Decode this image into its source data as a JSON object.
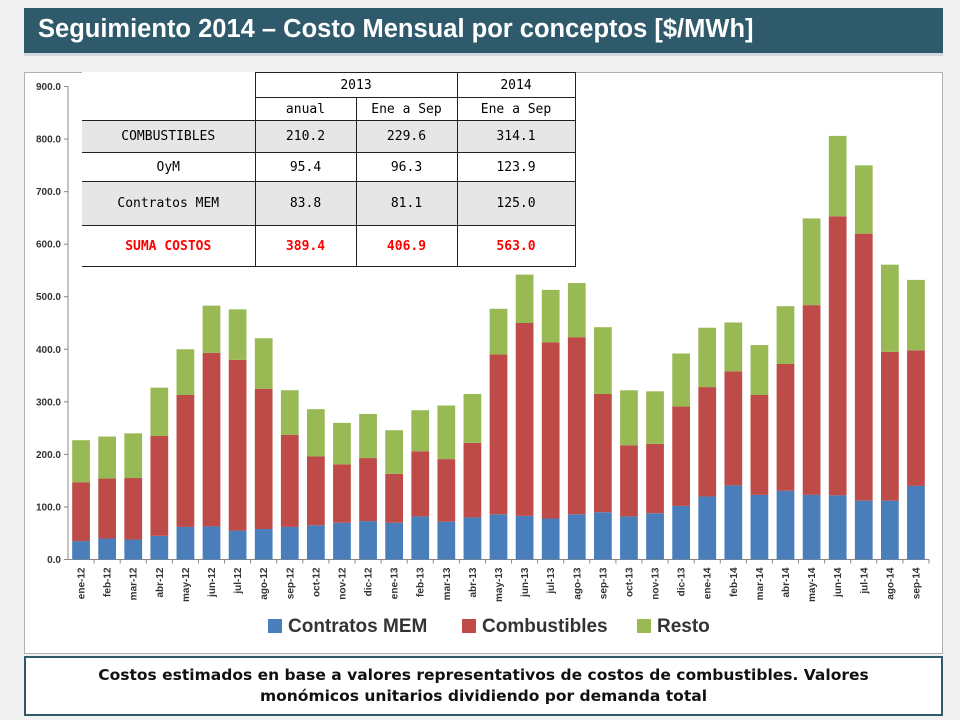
{
  "header": {
    "title": "Seguimiento 2014 – Costo Mensual por conceptos [$/MWh]"
  },
  "table": {
    "year_headers": [
      "2013",
      "2014"
    ],
    "sub_headers": [
      "anual",
      "Ene a Sep",
      "Ene a Sep"
    ],
    "rows": [
      {
        "label": "COMBUSTIBLES",
        "values": [
          "210.2",
          "229.6",
          "314.1"
        ]
      },
      {
        "label": "OyM",
        "values": [
          "95.4",
          "96.3",
          "123.9"
        ]
      },
      {
        "label": "Contratos MEM",
        "values": [
          "83.8",
          "81.1",
          "125.0"
        ]
      },
      {
        "label": "SUMA COSTOS",
        "values": [
          "389.4",
          "406.9",
          "563.0"
        ]
      }
    ]
  },
  "footnote": {
    "text": "Costos estimados en base a valores representativos de costos de combustibles. Valores monómicos unitarios dividiendo por demanda total"
  },
  "colors": {
    "title_bg": "#2f5a6b",
    "contratos": "#4a7ebb",
    "combustibles": "#be4b48",
    "resto": "#98b954",
    "total_row": "#ff0000"
  },
  "chart_data": {
    "type": "bar",
    "stacked": true,
    "categories": [
      "ene-12",
      "feb-12",
      "mar-12",
      "abr-12",
      "may-12",
      "jun-12",
      "jul-12",
      "ago-12",
      "sep-12",
      "oct-12",
      "nov-12",
      "dic-12",
      "ene-13",
      "feb-13",
      "mar-13",
      "abr-13",
      "may-13",
      "jun-13",
      "jul-13",
      "ago-13",
      "sep-13",
      "oct-13",
      "nov-13",
      "dic-13",
      "ene-14",
      "feb-14",
      "mar-14",
      "abr-14",
      "may-14",
      "jun-14",
      "jul-14",
      "ago-14",
      "sep-14"
    ],
    "series": [
      {
        "name": "Contratos MEM",
        "color": "#4a7ebb",
        "values": [
          35,
          40,
          38,
          45,
          62,
          63,
          55,
          58,
          62,
          65,
          70,
          73,
          70,
          82,
          72,
          80,
          86,
          83,
          78,
          86,
          90,
          82,
          88,
          102,
          120,
          141,
          123,
          131,
          123,
          122,
          112,
          112,
          140
        ]
      },
      {
        "name": "Combustibles",
        "color": "#be4b48",
        "values": [
          112,
          114,
          117,
          190,
          251,
          330,
          325,
          267,
          175,
          131,
          111,
          120,
          93,
          124,
          119,
          142,
          304,
          367,
          335,
          337,
          225,
          135,
          132,
          189,
          208,
          217,
          190,
          241,
          361,
          531,
          508,
          283,
          258
        ]
      },
      {
        "name": "Resto",
        "color": "#98b954",
        "values": [
          80,
          80,
          85,
          92,
          87,
          90,
          96,
          96,
          85,
          90,
          79,
          84,
          83,
          78,
          102,
          93,
          87,
          92,
          100,
          103,
          127,
          105,
          100,
          101,
          113,
          93,
          95,
          110,
          165,
          153,
          130,
          166,
          134
        ]
      }
    ],
    "ylim": [
      0,
      900
    ],
    "yticks": [
      "0.0",
      "100.0",
      "200.0",
      "300.0",
      "400.0",
      "500.0",
      "600.0",
      "700.0",
      "800.0",
      "900.0"
    ],
    "ytick_values": [
      0,
      100,
      200,
      300,
      400,
      500,
      600,
      700,
      800,
      900
    ],
    "legend_position": "bottom-center",
    "grid": false,
    "title": "",
    "xlabel": "",
    "ylabel": ""
  }
}
